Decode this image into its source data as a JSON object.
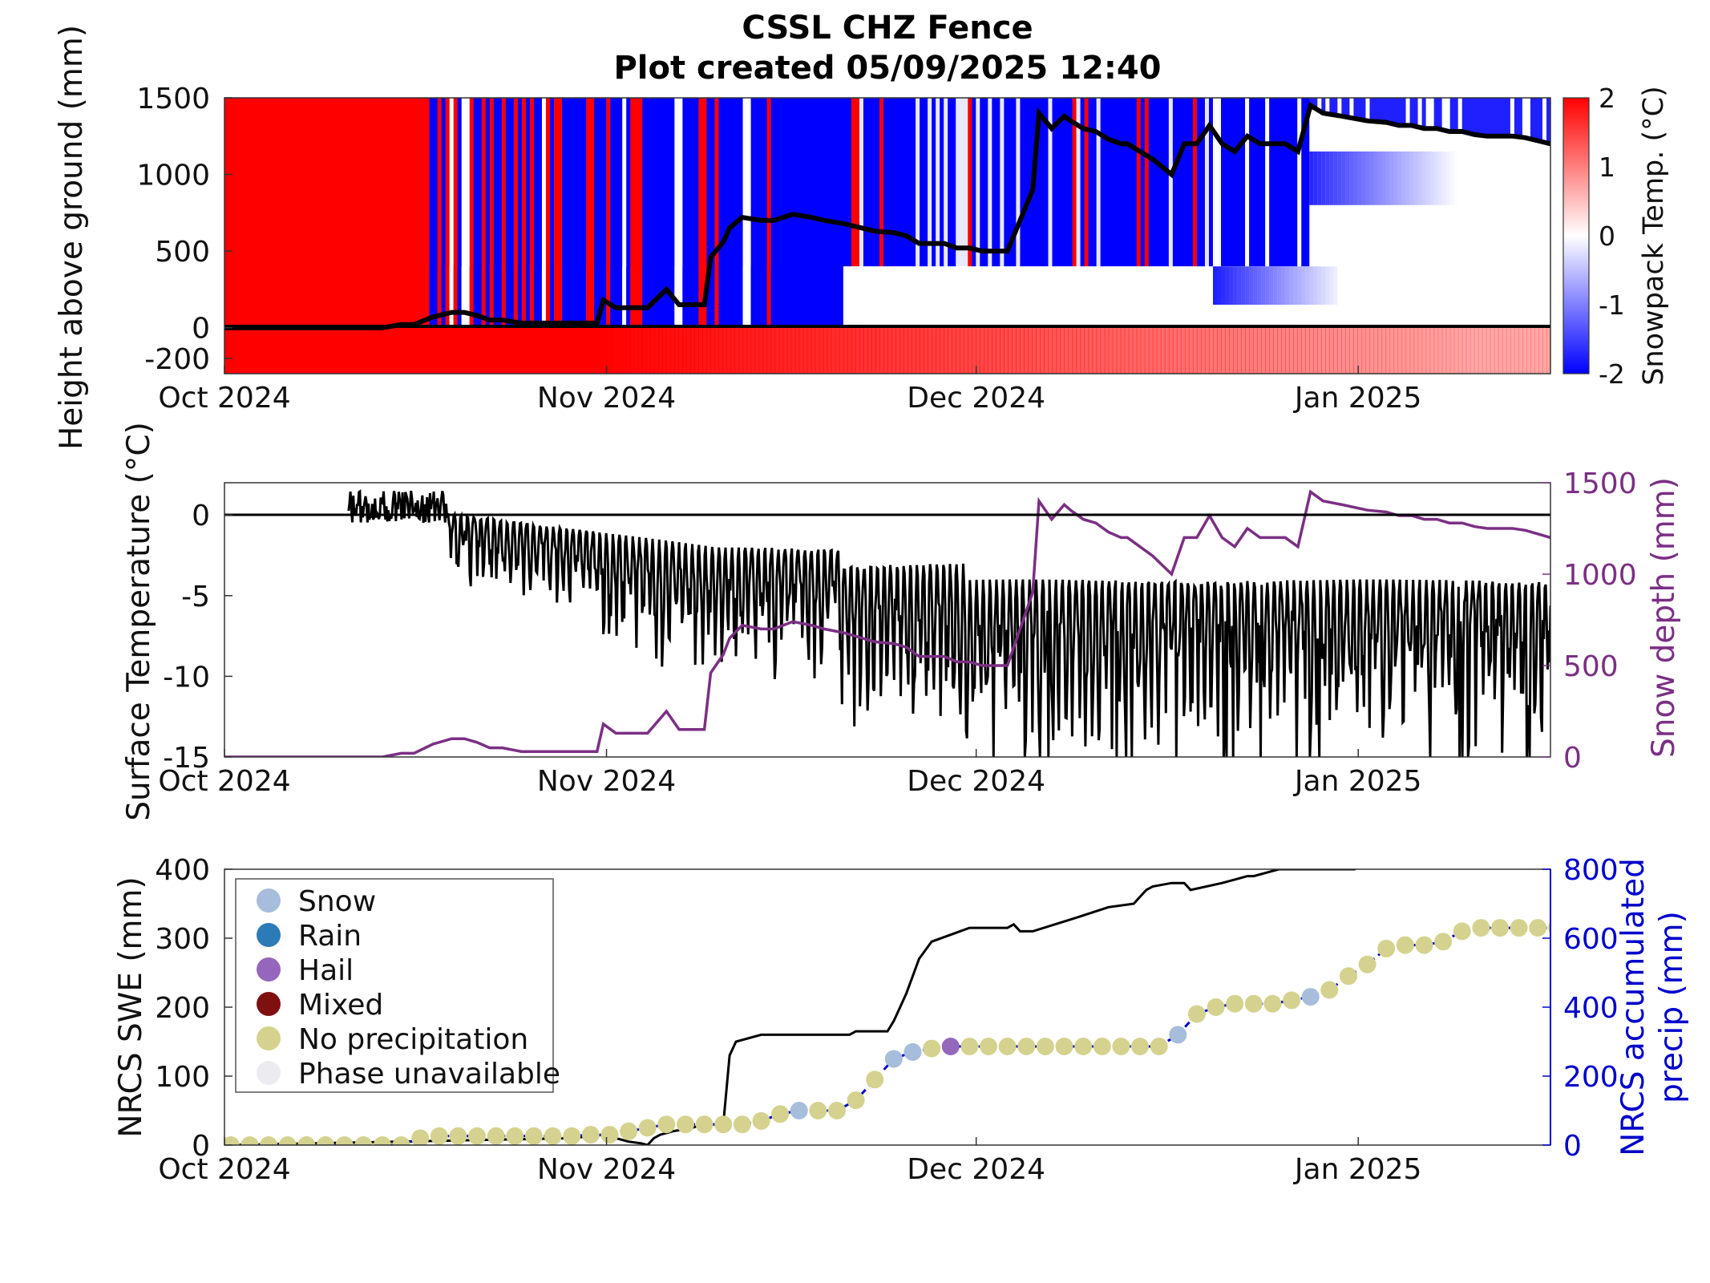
{
  "chart_data": [
    {
      "type": "heatmap",
      "title": "CSSL CHZ Fence",
      "subtitle": "Plot created 05/09/2025 12:40",
      "ylabel": "Height above ground (mm)",
      "ylim": [
        -300,
        1500
      ],
      "y_ticks": [
        1500,
        1000,
        500,
        0,
        -200
      ],
      "x_ticks": [
        "Oct 2024",
        "Nov 2024",
        "Dec 2024",
        "Jan 2025"
      ],
      "colorbar": {
        "label": "Snowpack Temp. (°C)",
        "range": [
          -2,
          2
        ],
        "ticks": [
          "2",
          "1",
          "0",
          "-1",
          "-2"
        ]
      },
      "snow_depth_series": {
        "x_day": [
          0,
          25,
          28,
          30,
          33,
          36,
          38,
          40,
          42,
          44,
          47,
          49,
          52,
          56,
          59,
          60,
          62,
          65,
          67,
          70,
          72,
          74,
          76,
          77,
          79,
          80,
          82,
          85,
          87,
          90,
          93,
          95,
          98,
          101,
          103,
          106,
          108,
          110,
          112,
          114,
          116,
          118,
          120,
          122,
          124,
          126,
          128,
          129,
          131,
          133,
          134,
          136,
          138,
          140,
          142,
          143,
          145,
          147,
          150,
          152,
          154,
          156,
          158,
          160,
          162,
          164,
          166,
          168,
          170,
          172,
          174,
          177,
          181,
          184,
          186,
          188,
          190,
          192,
          194,
          196,
          198,
          200,
          202,
          204,
          206,
          208,
          210
        ],
        "y": [
          0,
          0,
          20,
          20,
          70,
          100,
          100,
          80,
          50,
          50,
          30,
          30,
          30,
          30,
          30,
          180,
          130,
          130,
          130,
          250,
          150,
          150,
          150,
          460,
          560,
          650,
          720,
          700,
          700,
          740,
          720,
          700,
          680,
          650,
          630,
          620,
          600,
          550,
          550,
          550,
          520,
          520,
          500,
          500,
          500,
          700,
          900,
          1400,
          1300,
          1380,
          1350,
          1300,
          1280,
          1230,
          1200,
          1200,
          1150,
          1100,
          1000,
          1200,
          1200,
          1320,
          1200,
          1150,
          1250,
          1200,
          1200,
          1200,
          1150,
          1450,
          1400,
          1380,
          1350,
          1340,
          1320,
          1320,
          1300,
          1300,
          1280,
          1280,
          1260,
          1250,
          1250,
          1250,
          1240,
          1220,
          1200
        ]
      }
    },
    {
      "type": "line",
      "xlabel": "",
      "ylabel": "Surface Temperature (°C)",
      "ylim": [
        -15,
        2
      ],
      "y_ticks": [
        "0",
        "-5",
        "-10",
        "-15"
      ],
      "y2label": "Snow depth (mm)",
      "y2lim": [
        0,
        1500
      ],
      "y2_ticks": [
        "1500",
        "1000",
        "500",
        "0"
      ],
      "x_ticks": [
        "Oct 2024",
        "Nov 2024",
        "Dec 2024",
        "Jan 2025"
      ],
      "colors": {
        "temperature": "#000000",
        "snow_depth": "#7b2f84"
      }
    },
    {
      "type": "scatter",
      "ylabel": "NRCS SWE (mm)",
      "ylim": [
        0,
        400
      ],
      "y_ticks": [
        "400",
        "300",
        "200",
        "100",
        "0"
      ],
      "y2label_line1": "NRCS accumulated",
      "y2label_line2": "precip (mm)",
      "y2lim": [
        0,
        800
      ],
      "y2_ticks": [
        "800",
        "600",
        "400",
        "200",
        "0"
      ],
      "x_ticks": [
        "Oct 2024",
        "Nov 2024",
        "Dec 2024",
        "Jan 2025"
      ],
      "legend": [
        {
          "label": "Snow",
          "color": "#a6bddb"
        },
        {
          "label": "Rain",
          "color": "#2c7bb6"
        },
        {
          "label": "Hail",
          "color": "#9467bd"
        },
        {
          "label": "Mixed",
          "color": "#7f1010"
        },
        {
          "label": "No precipitation",
          "color": "#d4d28e"
        },
        {
          "label": "Phase unavailable",
          "color": "#ececf0"
        }
      ],
      "swe_days": [
        1,
        4,
        7,
        10,
        13,
        16,
        19,
        22,
        25,
        28,
        31,
        34,
        37,
        40,
        43,
        46,
        49,
        52,
        55,
        58,
        61,
        64,
        67,
        70,
        73,
        76,
        79,
        82,
        85,
        88,
        91,
        94,
        97,
        100,
        103,
        106,
        109,
        112,
        115,
        118,
        121,
        124,
        127,
        130,
        133,
        136,
        139,
        142,
        145,
        148,
        151,
        154,
        157,
        160,
        163,
        166,
        169,
        172,
        175,
        178,
        181,
        184,
        187,
        190,
        193,
        196,
        199,
        202,
        205,
        208,
        211
      ],
      "swe_values": [
        0,
        0,
        0,
        0,
        0,
        0,
        0,
        0,
        0,
        0,
        10,
        13,
        13,
        13,
        13,
        13,
        13,
        13,
        13,
        15,
        15,
        20,
        25,
        30,
        30,
        30,
        30,
        30,
        35,
        45,
        50,
        50,
        50,
        65,
        95,
        125,
        135,
        140,
        143,
        143,
        143,
        143,
        143,
        143,
        143,
        143,
        143,
        143,
        143,
        143,
        160,
        190,
        200,
        205,
        205,
        205,
        210,
        215,
        225,
        245,
        262,
        285,
        290,
        290,
        295,
        310,
        315,
        315,
        315,
        315,
        315
      ],
      "swe_phase": [
        "none",
        "none",
        "none",
        "none",
        "none",
        "none",
        "none",
        "none",
        "none",
        "none",
        "none",
        "none",
        "none",
        "none",
        "none",
        "none",
        "none",
        "none",
        "none",
        "none",
        "none",
        "none",
        "none",
        "none",
        "none",
        "none",
        "none",
        "none",
        "none",
        "none",
        "snow",
        "none",
        "none",
        "none",
        "none",
        "snow",
        "snow",
        "none",
        "hail",
        "none",
        "none",
        "none",
        "none",
        "none",
        "none",
        "none",
        "none",
        "none",
        "none",
        "none",
        "snow",
        "none",
        "none",
        "none",
        "none",
        "none",
        "none",
        "snow",
        "none",
        "none",
        "none",
        "none",
        "none",
        "none",
        "none",
        "none",
        "none",
        "none",
        "none",
        "none",
        "none"
      ],
      "precip_days": [
        0,
        55,
        60,
        62,
        64,
        66,
        67,
        68,
        69,
        71,
        74,
        76,
        78,
        79,
        80,
        81,
        85,
        98,
        99,
        100,
        101,
        102,
        103,
        104,
        105,
        106,
        107,
        108,
        110,
        112,
        115,
        118,
        124,
        125,
        126,
        127,
        128,
        135,
        140,
        144,
        145,
        146,
        147,
        150,
        152,
        153,
        158,
        160,
        162,
        163,
        165,
        167,
        175,
        179,
        180,
        181,
        209
      ],
      "precip_values": [
        0,
        20,
        30,
        20,
        10,
        5,
        0,
        20,
        30,
        40,
        50,
        60,
        60,
        60,
        260,
        300,
        320,
        320,
        320,
        330,
        330,
        330,
        330,
        330,
        330,
        360,
        400,
        440,
        540,
        590,
        610,
        630,
        630,
        640,
        620,
        620,
        620,
        660,
        690,
        700,
        720,
        740,
        750,
        760,
        760,
        740,
        760,
        770,
        780,
        780,
        790,
        800,
        800,
        800,
        820,
        820,
        820
      ]
    }
  ]
}
